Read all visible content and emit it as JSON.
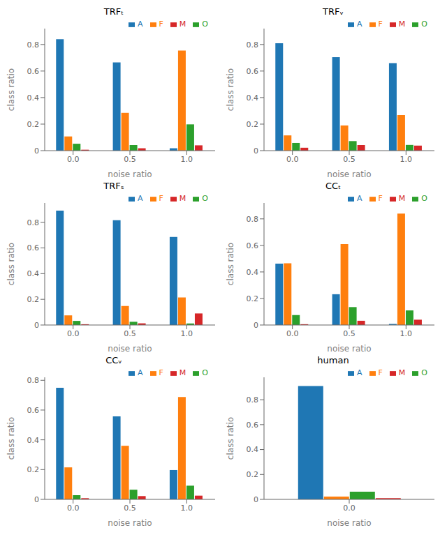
{
  "chart_data": [
    {
      "type": "bar",
      "title": "TRFₜ",
      "x_label": "noise ratio",
      "y_label": "class ratio",
      "categories": [
        "0.0",
        "0.5",
        "1.0"
      ],
      "series": [
        {
          "name": "A",
          "color": "#1f77b4",
          "values": [
            0.84,
            0.665,
            0.018
          ]
        },
        {
          "name": "F",
          "color": "#ff7f0e",
          "values": [
            0.107,
            0.285,
            0.755
          ]
        },
        {
          "name": "O",
          "color": "#2ca02c",
          "values": [
            0.052,
            0.042,
            0.198
          ]
        },
        {
          "name": "M",
          "color": "#d62728",
          "values": [
            0.007,
            0.018,
            0.04
          ]
        }
      ],
      "ylim": [
        0,
        0.92
      ],
      "yticks": [
        0,
        0.2,
        0.4,
        0.6,
        0.8
      ],
      "grid": false,
      "legend": "upper right"
    },
    {
      "type": "bar",
      "title": "TRFᵥ",
      "x_label": "noise ratio",
      "y_label": "class ratio",
      "categories": [
        "0.0",
        "0.5",
        "1.0"
      ],
      "series": [
        {
          "name": "A",
          "color": "#1f77b4",
          "values": [
            0.81,
            0.705,
            0.66
          ]
        },
        {
          "name": "F",
          "color": "#ff7f0e",
          "values": [
            0.115,
            0.19,
            0.268
          ]
        },
        {
          "name": "O",
          "color": "#2ca02c",
          "values": [
            0.058,
            0.072,
            0.043
          ]
        },
        {
          "name": "M",
          "color": "#d62728",
          "values": [
            0.022,
            0.042,
            0.038
          ]
        }
      ],
      "ylim": [
        0,
        0.92
      ],
      "yticks": [
        0,
        0.2,
        0.4,
        0.6,
        0.8
      ],
      "grid": false,
      "legend": "upper right"
    },
    {
      "type": "bar",
      "title": "TRFₛ",
      "x_label": "noise ratio",
      "y_label": "class ratio",
      "categories": [
        "0.0",
        "0.5",
        "1.0"
      ],
      "series": [
        {
          "name": "A",
          "color": "#1f77b4",
          "values": [
            0.89,
            0.815,
            0.685
          ]
        },
        {
          "name": "F",
          "color": "#ff7f0e",
          "values": [
            0.075,
            0.148,
            0.215
          ]
        },
        {
          "name": "O",
          "color": "#2ca02c",
          "values": [
            0.032,
            0.025,
            0.012
          ]
        },
        {
          "name": "M",
          "color": "#d62728",
          "values": [
            0.006,
            0.013,
            0.09
          ]
        }
      ],
      "ylim": [
        0,
        0.95
      ],
      "yticks": [
        0,
        0.2,
        0.4,
        0.6,
        0.8
      ],
      "grid": false,
      "legend": "upper right"
    },
    {
      "type": "bar",
      "title": "CCₜ",
      "x_label": "noise ratio",
      "y_label": "class ratio",
      "categories": [
        "0.0",
        "0.5",
        "1.0"
      ],
      "series": [
        {
          "name": "A",
          "color": "#1f77b4",
          "values": [
            0.462,
            0.232,
            0.008
          ]
        },
        {
          "name": "F",
          "color": "#ff7f0e",
          "values": [
            0.465,
            0.61,
            0.84
          ]
        },
        {
          "name": "O",
          "color": "#2ca02c",
          "values": [
            0.075,
            0.135,
            0.11
          ]
        },
        {
          "name": "M",
          "color": "#d62728",
          "values": [
            0.006,
            0.032,
            0.04
          ]
        }
      ],
      "ylim": [
        0,
        0.92
      ],
      "yticks": [
        0,
        0.2,
        0.4,
        0.6,
        0.8
      ],
      "grid": false,
      "legend": "upper right"
    },
    {
      "type": "bar",
      "title": "CCᵥ",
      "x_label": "noise ratio",
      "y_label": "class ratio",
      "categories": [
        "0.0",
        "0.5",
        "1.0"
      ],
      "series": [
        {
          "name": "A",
          "color": "#1f77b4",
          "values": [
            0.75,
            0.558,
            0.197
          ]
        },
        {
          "name": "F",
          "color": "#ff7f0e",
          "values": [
            0.215,
            0.36,
            0.688
          ]
        },
        {
          "name": "O",
          "color": "#2ca02c",
          "values": [
            0.028,
            0.065,
            0.092
          ]
        },
        {
          "name": "M",
          "color": "#d62728",
          "values": [
            0.008,
            0.022,
            0.025
          ]
        }
      ],
      "ylim": [
        0,
        0.82
      ],
      "yticks": [
        0,
        0.2,
        0.4,
        0.6,
        0.8
      ],
      "grid": false,
      "legend": "upper right"
    },
    {
      "type": "bar",
      "title": "human",
      "x_label": "noise ratio",
      "y_label": "class ratio",
      "categories": [
        "0.0"
      ],
      "series": [
        {
          "name": "A",
          "color": "#1f77b4",
          "values": [
            0.91
          ]
        },
        {
          "name": "F",
          "color": "#ff7f0e",
          "values": [
            0.022
          ]
        },
        {
          "name": "O",
          "color": "#2ca02c",
          "values": [
            0.062
          ]
        },
        {
          "name": "M",
          "color": "#d62728",
          "values": [
            0.01
          ]
        }
      ],
      "ylim": [
        0,
        0.98
      ],
      "yticks": [
        0,
        0.2,
        0.4,
        0.6,
        0.8
      ],
      "grid": false,
      "legend": "upper right"
    }
  ]
}
